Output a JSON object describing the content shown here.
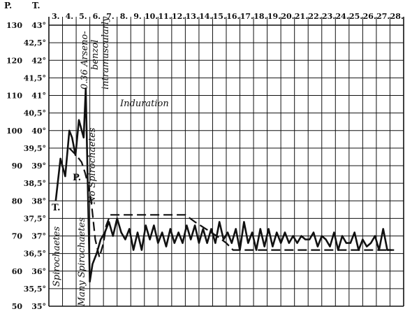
{
  "chart_data": {
    "type": "line",
    "header": {
      "pulse": "P.",
      "temp": "T."
    },
    "x": [
      "3.",
      "4.",
      "5.",
      "6.",
      "7.",
      "8.",
      "9.",
      "10.",
      "11.",
      "12.",
      "13.",
      "14.",
      "15.",
      "16.",
      "17.",
      "18.",
      "19.",
      "20.",
      "21.",
      "22.",
      "23.",
      "24.",
      "25.",
      "26.",
      "27.",
      "28."
    ],
    "pulse_ticks": [
      "50",
      "60",
      "70",
      "80",
      "90",
      "100",
      "110",
      "120",
      "130"
    ],
    "temp_ticks": [
      "35°",
      "35,5°",
      "36°",
      "36,5°",
      "37°",
      "37,5°",
      "38°",
      "38,5°",
      "39°",
      "39,5°",
      "40°",
      "40,5°",
      "41°",
      "41,5°",
      "42°",
      "42,5°",
      "43°"
    ],
    "ylim": [
      35,
      43
    ],
    "series": [
      {
        "name": "T.",
        "style": "solid",
        "x": [
          3,
          3.35,
          3.7,
          4,
          4.2,
          4.45,
          4.7,
          5.05,
          5.2,
          5.5,
          5.7,
          6,
          6.3,
          6.6,
          6.9,
          7.2,
          7.5,
          7.8,
          8.1,
          8.4,
          8.7,
          9,
          9.3,
          9.6,
          9.9,
          10.2,
          10.5,
          10.8,
          11.1,
          11.4,
          11.7,
          12,
          12.3,
          12.6,
          12.9,
          13.2,
          13.5,
          13.8,
          14.1,
          14.4,
          14.7,
          15,
          15.3,
          15.6,
          15.9,
          16.2,
          16.5,
          16.8,
          17.1,
          17.4,
          17.7,
          18,
          18.3,
          18.6,
          18.9,
          19.2,
          19.5,
          19.8,
          20.1,
          20.4,
          20.7,
          21,
          21.3,
          21.6,
          21.9,
          22.2,
          22.5,
          22.8,
          23.1,
          23.4,
          23.7,
          24,
          24.3,
          24.6,
          24.9,
          25.2,
          25.5,
          25.8,
          26.1,
          26.4,
          26.7,
          27,
          27.3,
          27.6
        ],
        "y": [
          38.0,
          39.2,
          38.7,
          40.0,
          39.8,
          39.3,
          40.3,
          39.8,
          41.2,
          35.7,
          36.2,
          36.5,
          36.9,
          37.1,
          37.4,
          37.0,
          37.5,
          37.1,
          36.9,
          37.2,
          36.6,
          37.1,
          36.6,
          37.3,
          36.9,
          37.3,
          36.8,
          37.1,
          36.7,
          37.2,
          36.8,
          37.1,
          36.8,
          37.3,
          36.9,
          37.3,
          36.8,
          37.2,
          36.8,
          37.2,
          36.8,
          37.4,
          36.9,
          37.1,
          36.8,
          37.2,
          36.6,
          37.4,
          36.8,
          37.1,
          36.6,
          37.2,
          36.7,
          37.2,
          36.7,
          37.1,
          36.8,
          37.1,
          36.8,
          37.0,
          36.8,
          37.0,
          36.9,
          36.9,
          37.1,
          36.7,
          37.0,
          36.9,
          36.7,
          37.1,
          36.6,
          37.0,
          36.8,
          36.8,
          37.1,
          36.6,
          36.9,
          36.7,
          36.8,
          37.0,
          36.6,
          37.2,
          36.6,
          36.6
        ]
      },
      {
        "name": "P.",
        "style": "dashed",
        "x": [
          4,
          4.5,
          4.9,
          5.15,
          5.35,
          5.6,
          5.9,
          6.2,
          6.5,
          6.7,
          7.0,
          8.0,
          10.0,
          12.0,
          12.5,
          13.2,
          14.0,
          14.8,
          15.5,
          16.0,
          17.0,
          20.0,
          24.0,
          27.8
        ],
        "y": [
          39.5,
          39.3,
          39.1,
          38.8,
          38.5,
          38.0,
          36.9,
          36.4,
          36.8,
          37.3,
          37.6,
          37.6,
          37.6,
          37.6,
          37.6,
          37.4,
          37.2,
          37.0,
          36.8,
          36.6,
          36.6,
          36.6,
          36.6,
          36.6
        ]
      }
    ],
    "annotations": {
      "spirochaetes": "Spirochaetes",
      "many_spirochaetes": "Many Spirochaetes",
      "no_spirochaetes": "No Spirochaetes",
      "arseno": "0.36 Arseno-",
      "benzol": "benzol",
      "intramuscularly": "intramuscularly",
      "induration": "Induration",
      "label_t": "T.",
      "label_p": "P."
    }
  }
}
